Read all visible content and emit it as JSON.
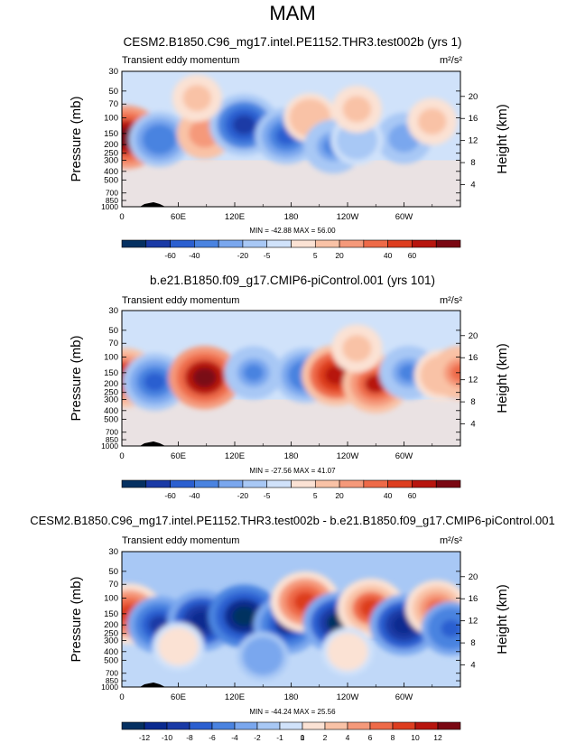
{
  "season": "MAM",
  "chart_data": [
    {
      "type": "heatmap",
      "title": "CESM2.B1850.C96_mg17.intel.PE1152.THR3.test002b (yrs 1)",
      "variable": "Transient eddy momentum",
      "units": "m²/s²",
      "xlabel": "",
      "ylabel": "Pressure (mb)",
      "ylabel_right": "Height (km)",
      "x_ticks": [
        "0",
        "60E",
        "120E",
        "180",
        "120W",
        "60W"
      ],
      "y_ticks": [
        "30",
        "50",
        "70",
        "100",
        "150",
        "200",
        "250",
        "300",
        "400",
        "500",
        "700",
        "850",
        "1000"
      ],
      "height_ticks": [
        "20",
        "16",
        "12",
        "8",
        "4"
      ],
      "minmax": "MIN = -42.88  MAX = 56.00",
      "colorbar_labels": [
        "-60",
        "-40",
        "-20",
        "-5",
        "5",
        "20",
        "40",
        "60"
      ],
      "colorbar_colors": [
        "#053061",
        "#1a3aa6",
        "#2b5fd0",
        "#4a83e0",
        "#7aa7ee",
        "#a8c8f5",
        "#d0e2fa",
        "#fbe2d4",
        "#f9c2a6",
        "#f5997a",
        "#ee6a48",
        "#dd3d1f",
        "#b7150e",
        "#7a0712"
      ],
      "features": [
        {
          "lon": 5,
          "p": 165,
          "v": 45
        },
        {
          "lon": 40,
          "p": 175,
          "v": -25
        },
        {
          "lon": 88,
          "p": 150,
          "v": 15
        },
        {
          "lon": 130,
          "p": 120,
          "v": -40
        },
        {
          "lon": 175,
          "p": 160,
          "v": -28
        },
        {
          "lon": 200,
          "p": 100,
          "v": 10
        },
        {
          "lon": 225,
          "p": 210,
          "v": -22
        },
        {
          "lon": 300,
          "p": 170,
          "v": -15
        },
        {
          "lon": 250,
          "p": 180,
          "v": -10
        },
        {
          "lon": 80,
          "p": 60,
          "v": 5
        },
        {
          "lon": 250,
          "p": 80,
          "v": 5
        },
        {
          "lon": 330,
          "p": 110,
          "v": 5
        }
      ]
    },
    {
      "type": "heatmap",
      "title": "b.e21.B1850.f09_g17.CMIP6-piControl.001 (yrs 101)",
      "variable": "Transient eddy momentum",
      "units": "m²/s²",
      "xlabel": "",
      "ylabel": "Pressure (mb)",
      "ylabel_right": "Height (km)",
      "x_ticks": [
        "0",
        "60E",
        "120E",
        "180",
        "120W",
        "60W"
      ],
      "y_ticks": [
        "30",
        "50",
        "70",
        "100",
        "150",
        "200",
        "250",
        "300",
        "400",
        "500",
        "700",
        "850",
        "1000"
      ],
      "height_ticks": [
        "20",
        "16",
        "12",
        "8",
        "4"
      ],
      "minmax": "MIN = -27.56  MAX = 41.07",
      "colorbar_labels": [
        "-60",
        "-40",
        "-20",
        "-5",
        "5",
        "20",
        "40",
        "60"
      ],
      "colorbar_colors": [
        "#053061",
        "#1a3aa6",
        "#2b5fd0",
        "#4a83e0",
        "#7aa7ee",
        "#a8c8f5",
        "#d0e2fa",
        "#fbe2d4",
        "#f9c2a6",
        "#f5997a",
        "#ee6a48",
        "#dd3d1f",
        "#b7150e",
        "#7a0712"
      ],
      "features": [
        {
          "lon": 3,
          "p": 170,
          "v": 25
        },
        {
          "lon": 35,
          "p": 190,
          "v": -22
        },
        {
          "lon": 88,
          "p": 170,
          "v": 32
        },
        {
          "lon": 140,
          "p": 150,
          "v": -14
        },
        {
          "lon": 195,
          "p": 160,
          "v": -18
        },
        {
          "lon": 228,
          "p": 160,
          "v": 28
        },
        {
          "lon": 270,
          "p": 200,
          "v": 24
        },
        {
          "lon": 305,
          "p": 150,
          "v": -15
        },
        {
          "lon": 340,
          "p": 160,
          "v": 10
        },
        {
          "lon": 360,
          "p": 150,
          "v": 15
        },
        {
          "lon": 250,
          "p": 80,
          "v": 5
        }
      ]
    },
    {
      "type": "heatmap",
      "title": "CESM2.B1850.C96_mg17.intel.PE1152.THR3.test002b - b.e21.B1850.f09_g17.CMIP6-piControl.001",
      "variable": "Transient eddy momentum",
      "units": "m²/s²",
      "xlabel": "",
      "ylabel": "Pressure (mb)",
      "ylabel_right": "Height (km)",
      "x_ticks": [
        "0",
        "60E",
        "120E",
        "180",
        "120W",
        "60W"
      ],
      "y_ticks": [
        "30",
        "50",
        "70",
        "100",
        "150",
        "200",
        "250",
        "300",
        "400",
        "500",
        "700",
        "850",
        "1000"
      ],
      "height_ticks": [
        "20",
        "16",
        "12",
        "8",
        "4"
      ],
      "minmax": "MIN = -44.24  MAX = 25.56",
      "colorbar_labels": [
        "-12",
        "-10",
        "-8",
        "-6",
        "-4",
        "-2",
        "-1",
        "0",
        "1",
        "2",
        "4",
        "6",
        "8",
        "10",
        "12"
      ],
      "colorbar_colors": [
        "#053061",
        "#0a2a8f",
        "#1a3aa6",
        "#2b5fd0",
        "#4a83e0",
        "#7aa7ee",
        "#a8c8f5",
        "#d0e2fa",
        "#fbe2d4",
        "#f9c2a6",
        "#f5997a",
        "#ee6a48",
        "#dd3d1f",
        "#b7150e",
        "#7a0712"
      ],
      "features": [
        {
          "lon": 8,
          "p": 150,
          "v": 14
        },
        {
          "lon": 40,
          "p": 200,
          "v": -11
        },
        {
          "lon": 85,
          "p": 180,
          "v": -14
        },
        {
          "lon": 130,
          "p": 160,
          "v": -16
        },
        {
          "lon": 175,
          "p": 200,
          "v": -12
        },
        {
          "lon": 195,
          "p": 110,
          "v": 14
        },
        {
          "lon": 230,
          "p": 190,
          "v": -15
        },
        {
          "lon": 265,
          "p": 130,
          "v": 13
        },
        {
          "lon": 300,
          "p": 200,
          "v": -14
        },
        {
          "lon": 335,
          "p": 130,
          "v": 10
        },
        {
          "lon": 350,
          "p": 220,
          "v": -8
        },
        {
          "lon": 60,
          "p": 350,
          "v": 3
        },
        {
          "lon": 150,
          "p": 450,
          "v": -3
        },
        {
          "lon": 240,
          "p": 400,
          "v": 3
        }
      ]
    }
  ]
}
